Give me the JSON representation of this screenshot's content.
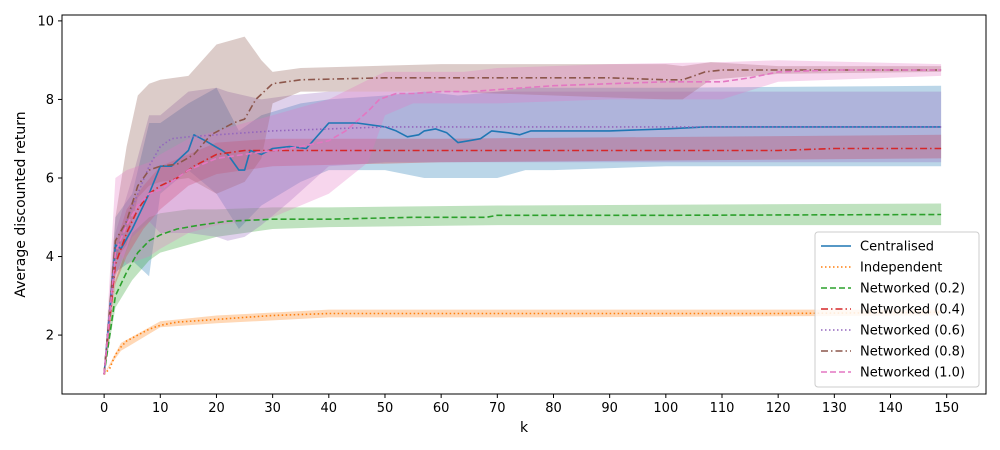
{
  "chart_data": {
    "type": "line",
    "title": "",
    "xlabel": "k",
    "ylabel": "Average discounted return",
    "xlim": [
      -7.5,
      157
    ],
    "ylim": [
      0.5,
      10.15
    ],
    "xticks": [
      0,
      10,
      20,
      30,
      40,
      50,
      60,
      70,
      80,
      90,
      100,
      110,
      120,
      130,
      140,
      150
    ],
    "yticks": [
      2,
      4,
      6,
      8,
      10
    ],
    "grid": false,
    "legend_position": "lower-right",
    "series": [
      {
        "name": "Centralised",
        "color": "#1f77b4",
        "dash": "solid",
        "points": [
          [
            0,
            1.0
          ],
          [
            2,
            4.3
          ],
          [
            3,
            4.2
          ],
          [
            5,
            4.7
          ],
          [
            8,
            5.6
          ],
          [
            10,
            6.3
          ],
          [
            12,
            6.3
          ],
          [
            15,
            6.7
          ],
          [
            16,
            7.1
          ],
          [
            18,
            6.95
          ],
          [
            21,
            6.7
          ],
          [
            22,
            6.6
          ],
          [
            24,
            6.2
          ],
          [
            25,
            6.2
          ],
          [
            26,
            6.7
          ],
          [
            28,
            6.6
          ],
          [
            30,
            6.75
          ],
          [
            33,
            6.8
          ],
          [
            36,
            6.75
          ],
          [
            40,
            7.4
          ],
          [
            45,
            7.4
          ],
          [
            50,
            7.3
          ],
          [
            52,
            7.2
          ],
          [
            54,
            7.05
          ],
          [
            56,
            7.1
          ],
          [
            57,
            7.2
          ],
          [
            59,
            7.25
          ],
          [
            61,
            7.15
          ],
          [
            63,
            6.9
          ],
          [
            65,
            6.95
          ],
          [
            67,
            7.0
          ],
          [
            69,
            7.2
          ],
          [
            72,
            7.15
          ],
          [
            74,
            7.1
          ],
          [
            76,
            7.2
          ],
          [
            80,
            7.2
          ],
          [
            90,
            7.2
          ],
          [
            100,
            7.25
          ],
          [
            107,
            7.3
          ],
          [
            120,
            7.3
          ],
          [
            149,
            7.3
          ]
        ],
        "band": [
          [
            0,
            1.0,
            1.0
          ],
          [
            2,
            3.6,
            5.0
          ],
          [
            5,
            3.9,
            5.6
          ],
          [
            8,
            3.5,
            7.4
          ],
          [
            10,
            5.6,
            7.4
          ],
          [
            15,
            6.2,
            7.9
          ],
          [
            20,
            5.6,
            8.3
          ],
          [
            24,
            4.7,
            7.2
          ],
          [
            28,
            5.3,
            7.6
          ],
          [
            35,
            5.9,
            7.9
          ],
          [
            40,
            6.2,
            8.0
          ],
          [
            50,
            6.2,
            8.1
          ],
          [
            57,
            6.0,
            8.2
          ],
          [
            63,
            6.0,
            8.1
          ],
          [
            70,
            6.0,
            8.2
          ],
          [
            75,
            6.2,
            8.3
          ],
          [
            80,
            6.2,
            8.3
          ],
          [
            100,
            6.3,
            8.3
          ],
          [
            149,
            6.3,
            8.35
          ]
        ]
      },
      {
        "name": "Independent",
        "color": "#ff7f0e",
        "dash": "dotted",
        "points": [
          [
            0,
            1.0
          ],
          [
            1,
            1.15
          ],
          [
            2,
            1.5
          ],
          [
            3,
            1.7
          ],
          [
            4,
            1.85
          ],
          [
            6,
            2.0
          ],
          [
            8,
            2.15
          ],
          [
            10,
            2.25
          ],
          [
            13,
            2.33
          ],
          [
            18,
            2.38
          ],
          [
            25,
            2.45
          ],
          [
            30,
            2.5
          ],
          [
            40,
            2.55
          ],
          [
            60,
            2.55
          ],
          [
            80,
            2.55
          ],
          [
            100,
            2.55
          ],
          [
            120,
            2.55
          ],
          [
            149,
            2.58
          ]
        ],
        "band": [
          [
            0,
            1.0,
            1.0
          ],
          [
            3,
            1.6,
            1.8
          ],
          [
            10,
            2.2,
            2.35
          ],
          [
            20,
            2.3,
            2.5
          ],
          [
            40,
            2.45,
            2.65
          ],
          [
            80,
            2.45,
            2.65
          ],
          [
            149,
            2.5,
            2.65
          ]
        ]
      },
      {
        "name": "Networked (0.2)",
        "color": "#2ca02c",
        "dash": "dashed",
        "points": [
          [
            0,
            1.0
          ],
          [
            2,
            3.0
          ],
          [
            4,
            3.6
          ],
          [
            6,
            4.1
          ],
          [
            8,
            4.4
          ],
          [
            10,
            4.55
          ],
          [
            13,
            4.7
          ],
          [
            17,
            4.8
          ],
          [
            22,
            4.9
          ],
          [
            30,
            4.95
          ],
          [
            40,
            4.95
          ],
          [
            55,
            5.0
          ],
          [
            68,
            5.0
          ],
          [
            70,
            5.05
          ],
          [
            100,
            5.05
          ],
          [
            149,
            5.07
          ]
        ],
        "band": [
          [
            0,
            1.0,
            1.0
          ],
          [
            2,
            2.7,
            3.4
          ],
          [
            5,
            3.4,
            4.6
          ],
          [
            8,
            3.9,
            5.0
          ],
          [
            10,
            4.1,
            5.1
          ],
          [
            15,
            4.3,
            5.2
          ],
          [
            20,
            4.5,
            5.2
          ],
          [
            30,
            4.7,
            5.25
          ],
          [
            40,
            4.75,
            5.25
          ],
          [
            70,
            4.8,
            5.3
          ],
          [
            149,
            4.8,
            5.35
          ]
        ]
      },
      {
        "name": "Networked (0.4)",
        "color": "#d62728",
        "dash": "dashdot",
        "points": [
          [
            0,
            1.0
          ],
          [
            2,
            3.8
          ],
          [
            4,
            4.6
          ],
          [
            6,
            5.2
          ],
          [
            8,
            5.6
          ],
          [
            10,
            5.8
          ],
          [
            13,
            6.0
          ],
          [
            16,
            6.3
          ],
          [
            20,
            6.6
          ],
          [
            25,
            6.7
          ],
          [
            30,
            6.7
          ],
          [
            40,
            6.7
          ],
          [
            60,
            6.7
          ],
          [
            80,
            6.7
          ],
          [
            100,
            6.7
          ],
          [
            120,
            6.7
          ],
          [
            130,
            6.75
          ],
          [
            149,
            6.75
          ]
        ],
        "band": [
          [
            0,
            1.0,
            1.0
          ],
          [
            2,
            3.3,
            4.3
          ],
          [
            4,
            4.0,
            5.2
          ],
          [
            7,
            4.7,
            5.8
          ],
          [
            10,
            5.2,
            6.3
          ],
          [
            15,
            5.8,
            6.6
          ],
          [
            20,
            6.1,
            6.9
          ],
          [
            30,
            6.3,
            7.0
          ],
          [
            60,
            6.4,
            7.0
          ],
          [
            149,
            6.5,
            7.1
          ]
        ]
      },
      {
        "name": "Networked (0.6)",
        "color": "#9467bd",
        "dash": "dotted",
        "points": [
          [
            0,
            1.0
          ],
          [
            2,
            4.0
          ],
          [
            4,
            4.9
          ],
          [
            6,
            5.6
          ],
          [
            8,
            6.3
          ],
          [
            10,
            6.8
          ],
          [
            12,
            7.0
          ],
          [
            15,
            7.05
          ],
          [
            20,
            7.1
          ],
          [
            30,
            7.2
          ],
          [
            40,
            7.25
          ],
          [
            50,
            7.3
          ],
          [
            60,
            7.3
          ],
          [
            80,
            7.3
          ],
          [
            100,
            7.3
          ],
          [
            149,
            7.3
          ]
        ],
        "band": [
          [
            0,
            1.0,
            1.0
          ],
          [
            2,
            3.5,
            4.6
          ],
          [
            5,
            4.5,
            6.0
          ],
          [
            8,
            4.9,
            7.6
          ],
          [
            10,
            4.6,
            7.6
          ],
          [
            15,
            4.6,
            8.2
          ],
          [
            20,
            4.5,
            8.3
          ],
          [
            22,
            4.4,
            8.2
          ],
          [
            25,
            4.5,
            8.1
          ],
          [
            28,
            4.8,
            8.0
          ],
          [
            33,
            5.4,
            8.1
          ],
          [
            40,
            6.3,
            8.2
          ],
          [
            50,
            6.4,
            8.2
          ],
          [
            60,
            6.4,
            8.2
          ],
          [
            80,
            6.4,
            8.2
          ],
          [
            100,
            6.4,
            8.2
          ],
          [
            149,
            6.4,
            8.2
          ]
        ]
      },
      {
        "name": "Networked (0.8)",
        "color": "#8c564b",
        "dash": "dashdot",
        "points": [
          [
            0,
            1.0
          ],
          [
            2,
            4.4
          ],
          [
            4,
            4.9
          ],
          [
            6,
            5.8
          ],
          [
            8,
            6.2
          ],
          [
            10,
            6.3
          ],
          [
            13,
            6.35
          ],
          [
            16,
            6.6
          ],
          [
            19,
            7.1
          ],
          [
            23,
            7.4
          ],
          [
            25,
            7.5
          ],
          [
            27,
            8.0
          ],
          [
            30,
            8.4
          ],
          [
            35,
            8.5
          ],
          [
            50,
            8.55
          ],
          [
            60,
            8.55
          ],
          [
            70,
            8.55
          ],
          [
            90,
            8.55
          ],
          [
            100,
            8.5
          ],
          [
            103,
            8.5
          ],
          [
            107,
            8.7
          ],
          [
            110,
            8.75
          ],
          [
            120,
            8.75
          ],
          [
            149,
            8.75
          ]
        ],
        "band": [
          [
            0,
            1.0,
            1.0
          ],
          [
            2,
            3.9,
            5.0
          ],
          [
            4,
            4.3,
            6.8
          ],
          [
            6,
            5.5,
            8.1
          ],
          [
            8,
            5.8,
            8.4
          ],
          [
            10,
            5.9,
            8.5
          ],
          [
            15,
            6.0,
            8.6
          ],
          [
            20,
            5.6,
            9.4
          ],
          [
            25,
            5.9,
            9.6
          ],
          [
            28,
            6.5,
            9.0
          ],
          [
            30,
            7.9,
            8.7
          ],
          [
            35,
            8.2,
            8.8
          ],
          [
            60,
            8.2,
            8.9
          ],
          [
            100,
            8.0,
            8.9
          ],
          [
            103,
            8.0,
            8.85
          ],
          [
            108,
            8.5,
            8.95
          ],
          [
            120,
            8.65,
            8.85
          ],
          [
            149,
            8.7,
            8.85
          ]
        ]
      },
      {
        "name": "Networked (1.0)",
        "color": "#e377c2",
        "dash": "dashed",
        "points": [
          [
            0,
            1.0
          ],
          [
            2,
            4.1
          ],
          [
            4,
            4.8
          ],
          [
            6,
            5.3
          ],
          [
            8,
            5.6
          ],
          [
            10,
            5.7
          ],
          [
            12,
            5.9
          ],
          [
            15,
            6.2
          ],
          [
            20,
            6.5
          ],
          [
            25,
            6.6
          ],
          [
            30,
            6.7
          ],
          [
            35,
            6.8
          ],
          [
            40,
            6.95
          ],
          [
            43,
            7.2
          ],
          [
            47,
            7.7
          ],
          [
            49,
            8.0
          ],
          [
            52,
            8.15
          ],
          [
            55,
            8.15
          ],
          [
            60,
            8.2
          ],
          [
            65,
            8.2
          ],
          [
            70,
            8.25
          ],
          [
            80,
            8.35
          ],
          [
            90,
            8.4
          ],
          [
            100,
            8.45
          ],
          [
            110,
            8.45
          ],
          [
            115,
            8.55
          ],
          [
            120,
            8.7
          ],
          [
            130,
            8.75
          ],
          [
            149,
            8.75
          ]
        ],
        "band": [
          [
            0,
            1.0,
            1.0
          ],
          [
            2,
            4.3,
            6.0
          ],
          [
            4,
            3.8,
            6.2
          ],
          [
            6,
            3.9,
            6.3
          ],
          [
            8,
            4.0,
            6.4
          ],
          [
            10,
            4.2,
            6.6
          ],
          [
            15,
            4.6,
            7.0
          ],
          [
            20,
            4.8,
            7.2
          ],
          [
            25,
            4.9,
            7.4
          ],
          [
            30,
            5.0,
            7.6
          ],
          [
            35,
            5.3,
            7.8
          ],
          [
            40,
            5.6,
            8.0
          ],
          [
            47,
            6.4,
            8.5
          ],
          [
            50,
            7.6,
            8.7
          ],
          [
            55,
            7.9,
            8.7
          ],
          [
            62,
            7.9,
            8.7
          ],
          [
            64,
            7.9,
            8.7
          ],
          [
            70,
            7.9,
            8.8
          ],
          [
            90,
            8.0,
            8.9
          ],
          [
            110,
            8.0,
            8.95
          ],
          [
            120,
            8.45,
            9.0
          ],
          [
            149,
            8.6,
            8.9
          ]
        ]
      }
    ]
  }
}
